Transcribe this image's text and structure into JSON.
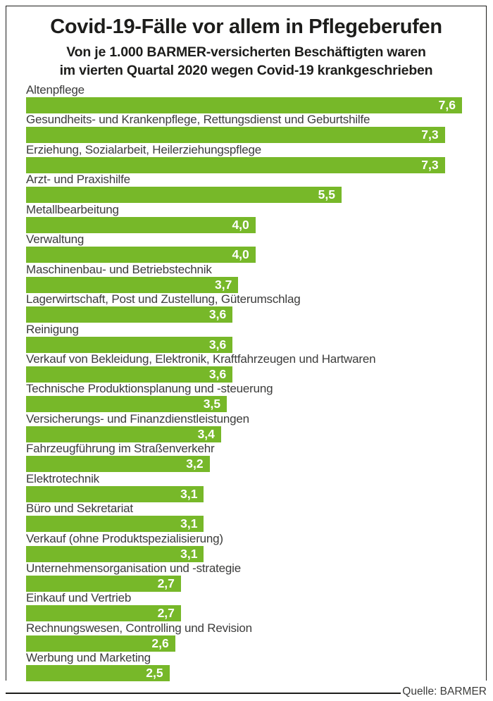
{
  "header": {
    "title": "Covid-19-Fälle vor allem in Pflegeberufen",
    "subtitle_line1": "Von je 1.000 BARMER-versicherten Beschäftigten waren",
    "subtitle_line2": "im vierten Quartal 2020 wegen Covid-19 krankgeschrieben"
  },
  "footer": {
    "source_label": "Quelle: BARMER"
  },
  "colors": {
    "bar_green": "#77b829",
    "value_text": "#ffffff",
    "category_text": "#3c3c3b",
    "title_text": "#1d1d1b",
    "frame_border": "#1d1d1b"
  },
  "chart_data": {
    "type": "bar",
    "orientation": "horizontal",
    "title": "Covid-19-Fälle vor allem in Pflegeberufen",
    "xlabel": "",
    "ylabel": "",
    "xlim": [
      0,
      7.6
    ],
    "grid": false,
    "legend": false,
    "value_label_position": "inside-end",
    "categories": [
      "Altenpflege",
      "Gesundheits- und Krankenpflege, Rettungsdienst und Geburtshilfe",
      "Erziehung, Sozialarbeit, Heilerziehungspflege",
      "Arzt- und Praxishilfe",
      "Metallbearbeitung",
      "Verwaltung",
      "Maschinenbau- und Betriebstechnik",
      "Lagerwirtschaft, Post und Zustellung, Güterumschlag",
      "Reinigung",
      "Verkauf von Bekleidung, Elektronik, Kraftfahrzeugen und Hartwaren",
      "Technische Produktionsplanung und -steuerung",
      "Versicherungs- und Finanzdienstleistungen",
      "Fahrzeugführung im Straßenverkehr",
      "Elektrotechnik",
      "Büro und Sekretariat",
      "Verkauf (ohne Produktspezialisierung)",
      "Unternehmensorganisation und -strategie",
      "Einkauf und Vertrieb",
      "Rechnungswesen, Controlling und Revision",
      "Werbung und Marketing"
    ],
    "values": [
      7.6,
      7.3,
      7.3,
      5.5,
      4.0,
      4.0,
      3.7,
      3.6,
      3.6,
      3.6,
      3.5,
      3.4,
      3.2,
      3.1,
      3.1,
      3.1,
      2.7,
      2.7,
      2.6,
      2.5
    ],
    "value_labels": [
      "7,6",
      "7,3",
      "7,3",
      "5,5",
      "4,0",
      "4,0",
      "3,7",
      "3,6",
      "3,6",
      "3,6",
      "3,5",
      "3,4",
      "3,2",
      "3,1",
      "3,1",
      "3,1",
      "2,7",
      "2,7",
      "2,6",
      "2,5"
    ]
  }
}
